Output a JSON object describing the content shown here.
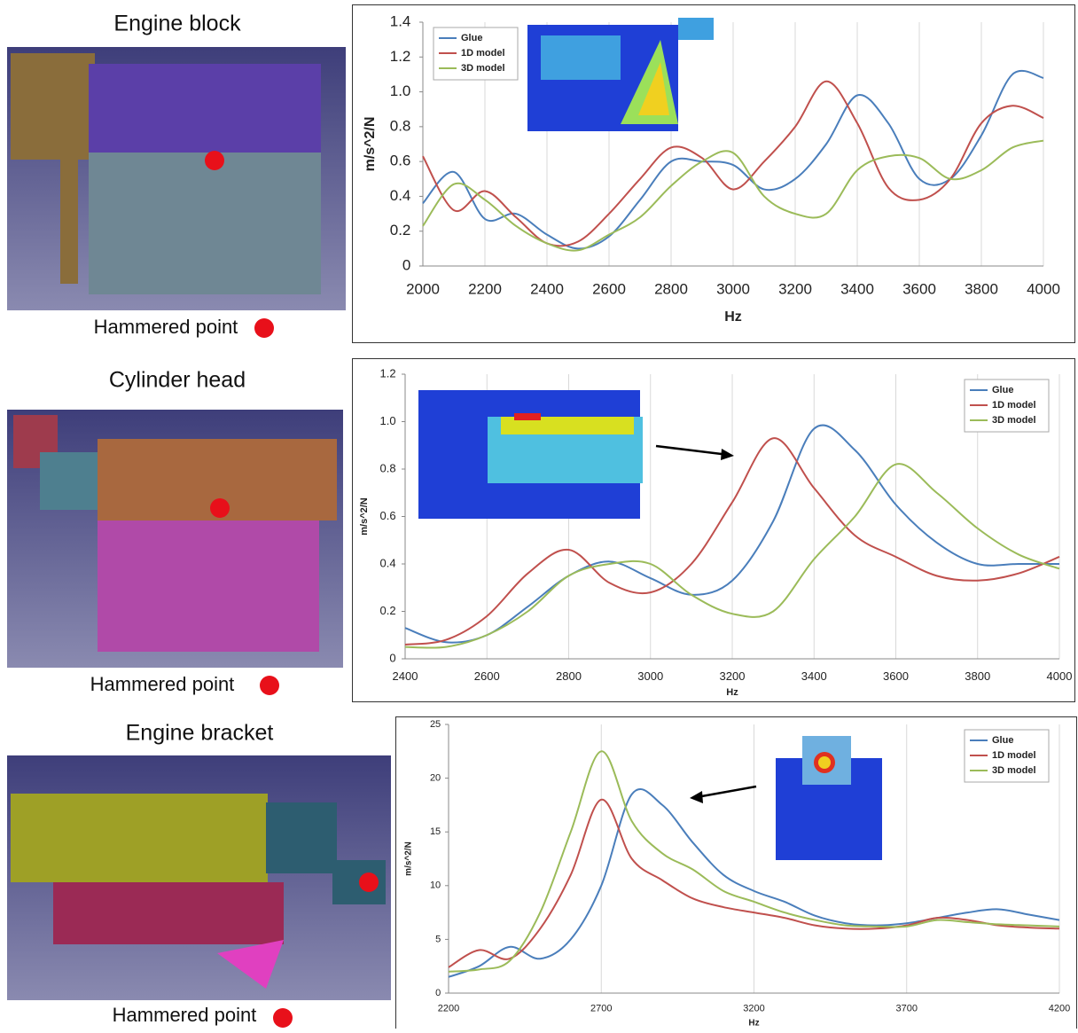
{
  "panels": [
    {
      "title": "Engine block",
      "caption": "Hammered point"
    },
    {
      "title": "Cylinder head",
      "caption": "Hammered point"
    },
    {
      "title": "Engine bracket",
      "caption": "Hammered point"
    }
  ],
  "chart_data": [
    {
      "type": "line",
      "xlabel": "Hz",
      "ylabel": "m/s^2/N",
      "grid": "x",
      "legend": "upper left",
      "x": [
        2000,
        2100,
        2200,
        2300,
        2400,
        2500,
        2600,
        2700,
        2800,
        2900,
        3000,
        3100,
        3200,
        3300,
        3400,
        3500,
        3600,
        3700,
        3800,
        3900,
        4000
      ],
      "xlim": [
        2000,
        4000
      ],
      "xticks": [
        2000,
        2200,
        2400,
        2600,
        2800,
        3000,
        3200,
        3400,
        3600,
        3800,
        4000
      ],
      "ylim": [
        0,
        1.4
      ],
      "yticks": [
        0,
        0.2,
        0.4,
        0.6,
        0.8,
        {
          "value": 1,
          "label": "1.0"
        },
        1.2,
        1.4
      ],
      "series": [
        {
          "name": "Glue",
          "color": "#4a7ebb",
          "values": [
            0.36,
            0.54,
            0.27,
            0.3,
            0.18,
            0.1,
            0.17,
            0.38,
            0.6,
            0.6,
            0.58,
            0.44,
            0.5,
            0.7,
            0.98,
            0.82,
            0.5,
            0.5,
            0.75,
            1.1,
            1.08
          ]
        },
        {
          "name": "1D model",
          "color": "#c0504d",
          "values": [
            0.63,
            0.32,
            0.43,
            0.28,
            0.13,
            0.14,
            0.3,
            0.5,
            0.68,
            0.62,
            0.44,
            0.6,
            0.8,
            1.06,
            0.82,
            0.45,
            0.38,
            0.5,
            0.82,
            0.92,
            0.85
          ]
        },
        {
          "name": "3D model",
          "color": "#9bbb59",
          "values": [
            0.23,
            0.47,
            0.38,
            0.23,
            0.13,
            0.09,
            0.18,
            0.28,
            0.46,
            0.6,
            0.65,
            0.4,
            0.3,
            0.3,
            0.55,
            0.63,
            0.62,
            0.5,
            0.55,
            0.68,
            0.72
          ]
        }
      ]
    },
    {
      "type": "line",
      "xlabel": "Hz",
      "ylabel": "m/s^2/N",
      "grid": "x",
      "legend": "upper right",
      "x": [
        2400,
        2500,
        2600,
        2700,
        2800,
        2900,
        3000,
        3100,
        3200,
        3300,
        3400,
        3500,
        3600,
        3700,
        3800,
        3900,
        4000
      ],
      "xlim": [
        2400,
        4000
      ],
      "xticks": [
        2400,
        2600,
        2800,
        3000,
        3200,
        3400,
        3600,
        3800,
        4000
      ],
      "ylim": [
        0,
        1.2
      ],
      "yticks": [
        0,
        0.2,
        0.4,
        0.6,
        0.8,
        {
          "value": 1,
          "label": "1.0"
        },
        1.2
      ],
      "series": [
        {
          "name": "Glue",
          "color": "#4a7ebb",
          "values": [
            0.13,
            0.07,
            0.1,
            0.22,
            0.35,
            0.41,
            0.34,
            0.27,
            0.33,
            0.58,
            0.97,
            0.88,
            0.65,
            0.49,
            0.4,
            0.4,
            0.4
          ]
        },
        {
          "name": "1D model",
          "color": "#c0504d",
          "values": [
            0.06,
            0.08,
            0.18,
            0.36,
            0.46,
            0.32,
            0.28,
            0.4,
            0.66,
            0.93,
            0.72,
            0.52,
            0.43,
            0.35,
            0.33,
            0.36,
            0.43
          ]
        },
        {
          "name": "3D model",
          "color": "#9bbb59",
          "values": [
            0.05,
            0.05,
            0.1,
            0.2,
            0.35,
            0.4,
            0.4,
            0.27,
            0.19,
            0.2,
            0.42,
            0.6,
            0.82,
            0.7,
            0.55,
            0.44,
            0.38
          ]
        }
      ]
    },
    {
      "type": "line",
      "xlabel": "Hz",
      "ylabel": "m/s^2/N",
      "grid": "x",
      "legend": "upper right",
      "x": [
        2200,
        2300,
        2400,
        2500,
        2600,
        2700,
        2800,
        2900,
        3000,
        3100,
        3200,
        3300,
        3400,
        3500,
        3600,
        3700,
        3800,
        3900,
        4000,
        4100,
        4200
      ],
      "xlim": [
        2200,
        4200
      ],
      "xticks": [
        2200,
        2700,
        3200,
        3700,
        4200
      ],
      "ylim": [
        0,
        25
      ],
      "yticks": [
        0,
        5,
        10,
        15,
        20,
        25
      ],
      "series": [
        {
          "name": "Glue",
          "color": "#4a7ebb",
          "values": [
            1.5,
            2.5,
            4.3,
            3.2,
            5,
            10,
            18.5,
            17.5,
            14,
            11,
            9.5,
            8.5,
            7.2,
            6.5,
            6.3,
            6.5,
            7,
            7.5,
            7.8,
            7.3,
            6.8
          ]
        },
        {
          "name": "1D model",
          "color": "#c0504d",
          "values": [
            2.4,
            4,
            3.2,
            6,
            11,
            18,
            12.5,
            10.5,
            8.8,
            8,
            7.5,
            7,
            6.3,
            6,
            6,
            6.3,
            7,
            6.8,
            6.3,
            6.1,
            6
          ]
        },
        {
          "name": "3D model",
          "color": "#9bbb59",
          "values": [
            2,
            2.2,
            3,
            7.5,
            15,
            22.5,
            16,
            13,
            11.5,
            9.5,
            8.5,
            7.5,
            6.8,
            6.3,
            6.2,
            6.2,
            6.8,
            6.6,
            6.4,
            6.3,
            6.2
          ]
        }
      ]
    }
  ]
}
